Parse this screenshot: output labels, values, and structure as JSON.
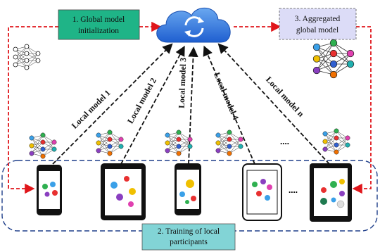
{
  "boxes": {
    "global_init": {
      "lines": [
        "1. Global model",
        "initialization"
      ]
    },
    "aggregated": {
      "lines": [
        "3. Aggregated",
        "global model"
      ]
    },
    "training": {
      "lines": [
        "2. Training of local",
        "participants"
      ]
    }
  },
  "local_models": [
    "Local model 1",
    "Local model 2",
    "Local model 3",
    "Local model 4",
    "Local model n"
  ],
  "ellipses": {
    "models": "....",
    "devices": "...."
  }
}
